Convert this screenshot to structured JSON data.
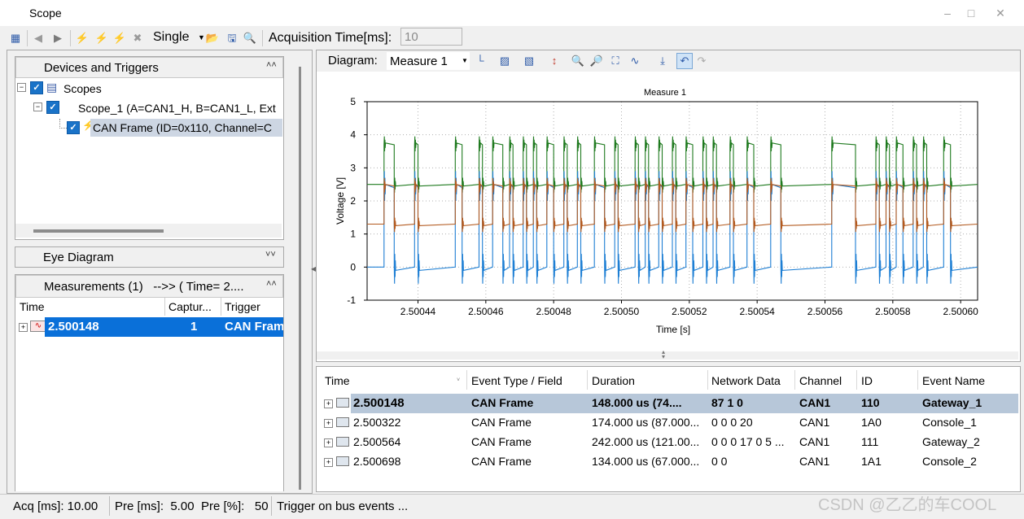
{
  "window": {
    "title": "Scope"
  },
  "toolbar": {
    "mode": "Single",
    "acq_label": "Acquisition Time[ms]:",
    "acq_value": "10"
  },
  "devices_panel": {
    "title": "Devices and Triggers",
    "tree": [
      {
        "label": "Scopes"
      },
      {
        "label": "Scope_1 (A=CAN1_H, B=CAN1_L, Ext"
      },
      {
        "label": "CAN Frame (ID=0x110, Channel=C"
      }
    ]
  },
  "eye_panel": {
    "title": "Eye Diagram"
  },
  "measurements_panel": {
    "title": "Measurements (1)   -->> ( Time= 2....",
    "columns": [
      "Time",
      "Captur...",
      "Trigger"
    ],
    "rows": [
      {
        "time": "2.500148",
        "capture": "1",
        "trigger": "CAN Fram"
      }
    ]
  },
  "diagram": {
    "label": "Diagram:",
    "selected": "Measure 1"
  },
  "chart_data": {
    "type": "line",
    "title": "Measure 1",
    "xlabel": "Time [s]",
    "ylabel": "Voltage [V]",
    "xlim": [
      2.500425,
      2.500605
    ],
    "ylim": [
      -1,
      5
    ],
    "xticks": [
      "2.50044",
      "2.50046",
      "2.50048",
      "2.50050",
      "2.50052",
      "2.50054",
      "2.50056",
      "2.50058",
      "2.50060"
    ],
    "yticks": [
      "5",
      "4",
      "3",
      "2",
      "1",
      "0",
      "-1"
    ],
    "grid": true,
    "series": [
      {
        "color": "#1f7a1f",
        "high": 3.7,
        "low": 2.5
      },
      {
        "color": "#1e7fd4",
        "high": 2.4,
        "low": 0.0
      },
      {
        "color": "#b35a1f",
        "high": 2.45,
        "low": 1.3
      }
    ],
    "dominant_intervals": [
      [
        2.50043,
        2.500433
      ],
      [
        2.500439,
        2.50044
      ],
      [
        2.500451,
        2.500453
      ],
      [
        2.500458,
        2.500459
      ],
      [
        2.500462,
        2.500465
      ],
      [
        2.500467,
        2.500468
      ],
      [
        2.500471,
        2.500472
      ],
      [
        2.500474,
        2.500475
      ],
      [
        2.500478,
        2.50048
      ],
      [
        2.500483,
        2.500484
      ],
      [
        2.500487,
        2.500488
      ],
      [
        2.500492,
        2.500495
      ],
      [
        2.500498,
        2.500499
      ],
      [
        2.500504,
        2.500505
      ],
      [
        2.500507,
        2.500508
      ],
      [
        2.500511,
        2.500512
      ],
      [
        2.500515,
        2.500516
      ],
      [
        2.500519,
        2.500521
      ],
      [
        2.500524,
        2.500525
      ],
      [
        2.500527,
        2.500528
      ],
      [
        2.500532,
        2.500533
      ],
      [
        2.500537,
        2.500539
      ],
      [
        2.500544,
        2.500547
      ],
      [
        2.500562,
        2.500569
      ],
      [
        2.500575,
        2.500576
      ],
      [
        2.500578,
        2.500579
      ],
      [
        2.500581,
        2.500583
      ],
      [
        2.500586,
        2.500587
      ],
      [
        2.500589,
        2.50059
      ],
      [
        2.500595,
        2.500597
      ]
    ]
  },
  "events_table": {
    "columns": [
      "Time",
      "Event Type / Field",
      "Duration",
      "Network Data",
      "Channel",
      "ID",
      "Event Name"
    ],
    "rows": [
      {
        "time": "2.500148",
        "type": "CAN Frame",
        "duration": "148.000 us (74....",
        "data": "87 1 0",
        "channel": "CAN1",
        "id": "110",
        "name": "Gateway_1"
      },
      {
        "time": "2.500322",
        "type": "CAN Frame",
        "duration": "174.000 us (87.000...",
        "data": "0 0 0 20",
        "channel": "CAN1",
        "id": "1A0",
        "name": "Console_1"
      },
      {
        "time": "2.500564",
        "type": "CAN Frame",
        "duration": "242.000 us (121.00...",
        "data": "0 0 0 17 0 5 ...",
        "channel": "CAN1",
        "id": "111",
        "name": "Gateway_2"
      },
      {
        "time": "2.500698",
        "type": "CAN Frame",
        "duration": "134.000 us (67.000...",
        "data": "0 0",
        "channel": "CAN1",
        "id": "1A1",
        "name": "Console_2"
      }
    ]
  },
  "status": {
    "acq": "Acq [ms]: 10.00",
    "pre_ms": "Pre [ms]:  5.00",
    "pre_pct": "Pre [%]:   50",
    "trigger": "Trigger on bus events ..."
  },
  "watermark": "CSDN @乙乙的车COOL"
}
